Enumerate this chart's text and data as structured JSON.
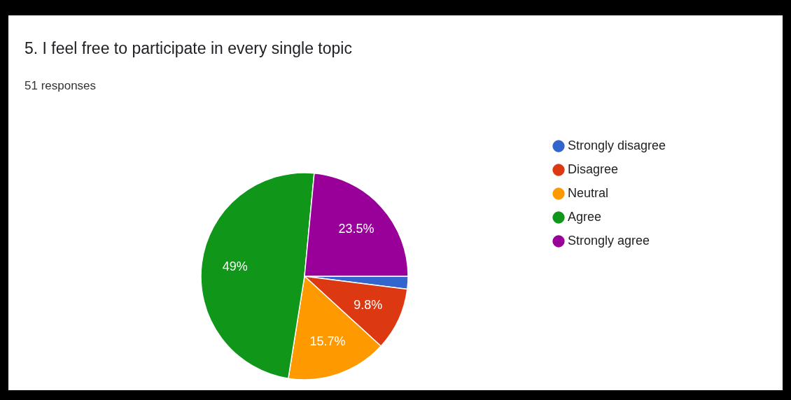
{
  "chart_data": {
    "type": "pie",
    "title": "5. I feel free to participate in every single topic",
    "subtitle": "51 responses",
    "categories": [
      "Strongly disagree",
      "Disagree",
      "Neutral",
      "Agree",
      "Strongly agree"
    ],
    "values": [
      2.0,
      9.8,
      15.7,
      49,
      23.5
    ],
    "colors": [
      "#3366cc",
      "#dc3912",
      "#ff9900",
      "#109618",
      "#990099"
    ],
    "value_labels": [
      null,
      "9.8%",
      "15.7%",
      "49%",
      "23.5%"
    ],
    "legend": "right"
  }
}
